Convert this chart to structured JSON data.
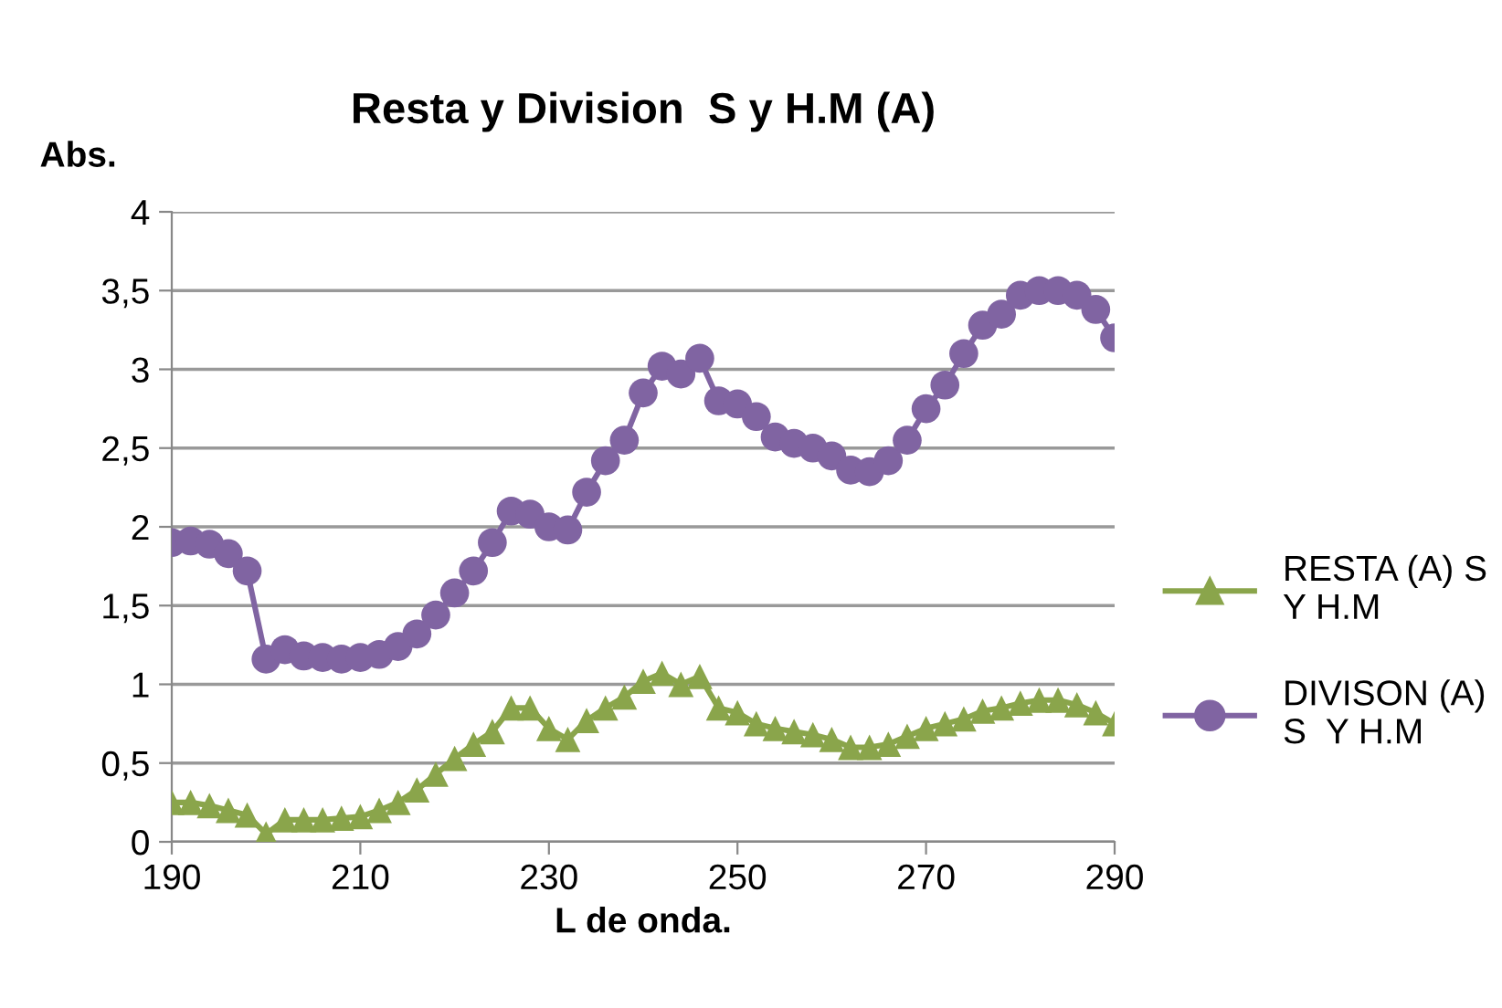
{
  "chart_data": {
    "type": "line",
    "title": "Resta y Division  S y H.M (A)",
    "xlabel": "L de onda.",
    "ylabel": "Abs.",
    "x": [
      190,
      192,
      194,
      196,
      198,
      200,
      202,
      204,
      206,
      208,
      210,
      212,
      214,
      216,
      218,
      220,
      222,
      224,
      226,
      228,
      230,
      232,
      234,
      236,
      238,
      240,
      242,
      244,
      246,
      248,
      250,
      252,
      254,
      256,
      258,
      260,
      262,
      264,
      266,
      268,
      270,
      272,
      274,
      276,
      278,
      280,
      282,
      284,
      286,
      288,
      290
    ],
    "series": [
      {
        "name": "RESTA (A) S Y H.M",
        "color": "#8aa54b",
        "marker": "triangle",
        "values": [
          0.25,
          0.25,
          0.23,
          0.2,
          0.17,
          0.05,
          0.14,
          0.14,
          0.14,
          0.15,
          0.16,
          0.2,
          0.25,
          0.33,
          0.43,
          0.53,
          0.62,
          0.7,
          0.85,
          0.85,
          0.72,
          0.65,
          0.77,
          0.85,
          0.92,
          1.02,
          1.07,
          1.0,
          1.05,
          0.85,
          0.82,
          0.75,
          0.72,
          0.7,
          0.68,
          0.65,
          0.6,
          0.6,
          0.62,
          0.67,
          0.72,
          0.75,
          0.78,
          0.83,
          0.85,
          0.88,
          0.9,
          0.9,
          0.87,
          0.82,
          0.75
        ]
      },
      {
        "name": "DIVISON (A)    S  Y H.M",
        "color": "#8064a2",
        "marker": "circle",
        "values": [
          1.9,
          1.91,
          1.89,
          1.83,
          1.72,
          1.16,
          1.22,
          1.18,
          1.17,
          1.16,
          1.17,
          1.19,
          1.24,
          1.32,
          1.44,
          1.58,
          1.72,
          1.9,
          2.1,
          2.08,
          2.0,
          1.98,
          2.22,
          2.42,
          2.55,
          2.85,
          3.02,
          2.97,
          3.07,
          2.8,
          2.78,
          2.7,
          2.57,
          2.53,
          2.5,
          2.45,
          2.36,
          2.35,
          2.42,
          2.55,
          2.75,
          2.9,
          3.1,
          3.28,
          3.35,
          3.47,
          3.5,
          3.5,
          3.47,
          3.38,
          3.2
        ]
      }
    ],
    "xlim": [
      190,
      290
    ],
    "xticks": [
      190,
      210,
      230,
      250,
      270,
      290
    ],
    "ylim": [
      0,
      4
    ],
    "yticks": [
      0,
      {
        "value": 0.5,
        "label": "0,5"
      },
      1,
      {
        "value": 1.5,
        "label": "1,5"
      },
      2,
      {
        "value": 2.5,
        "label": "2,5"
      },
      3,
      {
        "value": 3.5,
        "label": "3,5"
      },
      4
    ],
    "grid": "y",
    "legend": "right",
    "line_style": "solid"
  }
}
